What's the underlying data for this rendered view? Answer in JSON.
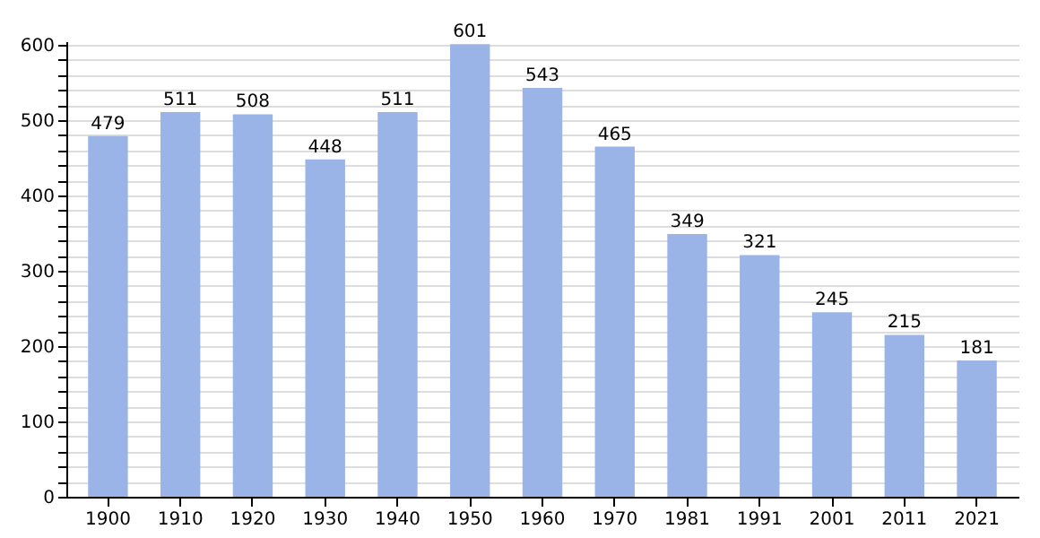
{
  "chart_data": {
    "type": "bar",
    "categories": [
      "1900",
      "1910",
      "1920",
      "1930",
      "1940",
      "1950",
      "1960",
      "1970",
      "1981",
      "1991",
      "2001",
      "2011",
      "2021"
    ],
    "values": [
      479,
      511,
      508,
      448,
      511,
      601,
      543,
      465,
      349,
      321,
      245,
      215,
      181
    ],
    "color": "#9bb4e8",
    "data_labels": true,
    "grid": "y",
    "ylim": [
      0,
      605
    ],
    "yticks": [
      0,
      {
        "value": 20,
        "label": null
      },
      {
        "value": 40,
        "label": null
      },
      {
        "value": 60,
        "label": null
      },
      {
        "value": 80,
        "label": null
      },
      100,
      {
        "value": 120,
        "label": null
      },
      {
        "value": 140,
        "label": null
      },
      {
        "value": 160,
        "label": null
      },
      {
        "value": 180,
        "label": null
      },
      200,
      {
        "value": 220,
        "label": null
      },
      {
        "value": 240,
        "label": null
      },
      {
        "value": 260,
        "label": null
      },
      {
        "value": 280,
        "label": null
      },
      300,
      {
        "value": 320,
        "label": null
      },
      {
        "value": 340,
        "label": null
      },
      {
        "value": 360,
        "label": null
      },
      {
        "value": 380,
        "label": null
      },
      400,
      {
        "value": 420,
        "label": null
      },
      {
        "value": 440,
        "label": null
      },
      {
        "value": 460,
        "label": null
      },
      {
        "value": 480,
        "label": null
      },
      500,
      {
        "value": 520,
        "label": null
      },
      {
        "value": 540,
        "label": null
      },
      {
        "value": 560,
        "label": null
      },
      {
        "value": 580,
        "label": null
      },
      600
    ]
  }
}
